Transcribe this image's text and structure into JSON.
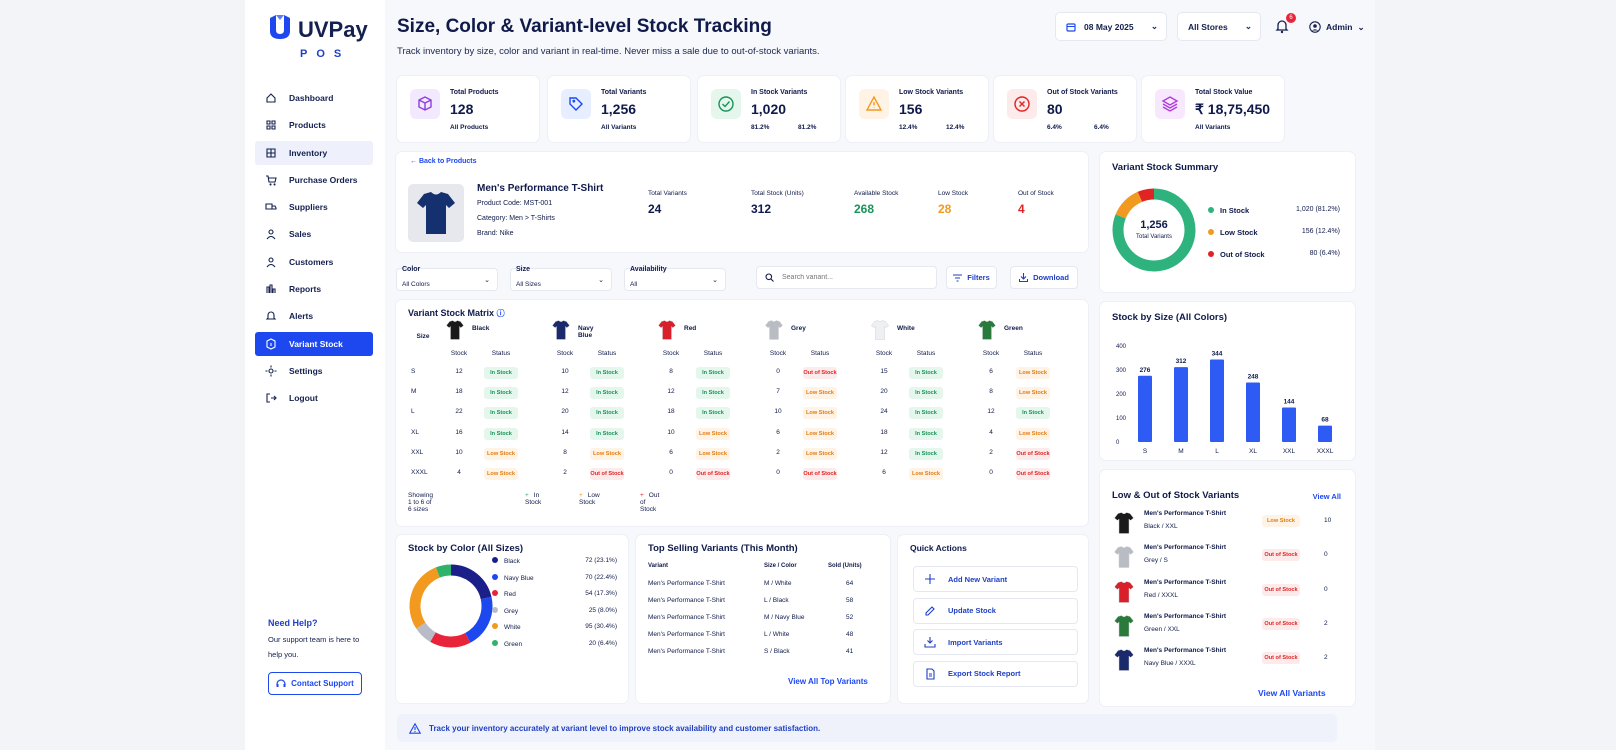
{
  "brand": {
    "name": "UVPay",
    "sub": "POS"
  },
  "nav": [
    {
      "label": "Dashboard",
      "icon": "home-icon"
    },
    {
      "label": "Products",
      "icon": "grid-icon"
    },
    {
      "label": "Inventory",
      "icon": "inventory-icon"
    },
    {
      "label": "Purchase Orders",
      "icon": "cart-icon"
    },
    {
      "label": "Suppliers",
      "icon": "supplier-icon"
    },
    {
      "label": "Sales",
      "icon": "sales-icon"
    },
    {
      "label": "Customers",
      "icon": "customers-icon"
    },
    {
      "label": "Reports",
      "icon": "reports-icon"
    },
    {
      "label": "Alerts",
      "icon": "alerts-icon"
    },
    {
      "label": "Variant Stock",
      "icon": "variant-stock-icon"
    },
    {
      "label": "Settings",
      "icon": "settings-icon"
    },
    {
      "label": "Logout",
      "icon": "logout-icon"
    }
  ],
  "help": {
    "title": "Need Help?",
    "text": "Our support team is here to help you.",
    "button": "Contact Support"
  },
  "header": {
    "title": "Size, Color & Variant-level Stock Tracking",
    "subtitle": "Track inventory by size, color and variant in real-time. Never miss a sale due to out-of-stock variants.",
    "date": "08 May 2025",
    "store": "All Stores",
    "notifications": "6",
    "user": "Admin"
  },
  "stats": [
    {
      "label": "Total Products",
      "value": "128",
      "s1": "All Products",
      "s2": "",
      "color": "#8b3fd9",
      "bg": "#f3e9ff",
      "icon": "box-icon"
    },
    {
      "label": "Total Variants",
      "value": "1,256",
      "s1": "All Variants",
      "s2": "",
      "color": "#1d48f0",
      "bg": "#e7eeff",
      "icon": "tag-icon"
    },
    {
      "label": "In Stock Variants",
      "value": "1,020",
      "s1": "81.2%",
      "s2": "81.2%",
      "color": "#16945a",
      "bg": "#e5f6ec",
      "icon": "check-icon"
    },
    {
      "label": "Low Stock Variants",
      "value": "156",
      "s1": "12.4%",
      "s2": "12.4%",
      "color": "#f29a20",
      "bg": "#fff3e6",
      "icon": "warning-icon"
    },
    {
      "label": "Out of Stock Variants",
      "value": "80",
      "s1": "6.4%",
      "s2": "6.4%",
      "color": "#e02424",
      "bg": "#fdeaea",
      "icon": "x-circle-icon"
    },
    {
      "label": "Total Stock Value",
      "value": "₹ 18,75,450",
      "s1": "All Variants",
      "s2": "",
      "color": "#b23ad9",
      "bg": "#f7e8fd",
      "icon": "layers-icon"
    }
  ],
  "product": {
    "back": "Back to Products",
    "name": "Men's Performance T-Shirt",
    "code": "Product Code: MST-001",
    "category": "Category: Men  >  T-Shirts",
    "brand": "Brand: Nike",
    "metrics": [
      {
        "label": "Total Variants",
        "value": "24",
        "color": "#0f1a4a"
      },
      {
        "label": "Total Stock (Units)",
        "value": "312",
        "color": "#0f1a4a"
      },
      {
        "label": "Available Stock",
        "value": "268",
        "color": "#16945a"
      },
      {
        "label": "Low Stock",
        "value": "28",
        "color": "#f29a20"
      },
      {
        "label": "Out of Stock",
        "value": "4",
        "color": "#e02424"
      }
    ]
  },
  "filters": {
    "color": {
      "label": "Color",
      "value": "All Colors"
    },
    "size": {
      "label": "Size",
      "value": "All Sizes"
    },
    "availability": {
      "label": "Availability",
      "value": "All"
    },
    "search_placeholder": "Search variant...",
    "filters_btn": "Filters",
    "download_btn": "Download"
  },
  "matrix": {
    "title": "Variant Stock Matrix",
    "size_header": "Size",
    "stock_header": "Stock",
    "status_header": "Status",
    "colors": [
      {
        "name": "Black",
        "hex": "#1a1a1a"
      },
      {
        "name": "Navy Blue",
        "hex": "#1b2a6b"
      },
      {
        "name": "Red",
        "hex": "#d81f2a"
      },
      {
        "name": "Grey",
        "hex": "#b9bcc2"
      },
      {
        "name": "White",
        "hex": "#eef0f3"
      },
      {
        "name": "Green",
        "hex": "#2a7a3b"
      }
    ],
    "sizes": [
      "S",
      "M",
      "L",
      "XL",
      "XXL",
      "XXXL"
    ],
    "rows": [
      [
        [
          "12",
          "In Stock"
        ],
        [
          "10",
          "In Stock"
        ],
        [
          "8",
          "In Stock"
        ],
        [
          "0",
          "Out of Stock"
        ],
        [
          "15",
          "In Stock"
        ],
        [
          "6",
          "Low Stock"
        ]
      ],
      [
        [
          "18",
          "In Stock"
        ],
        [
          "12",
          "In Stock"
        ],
        [
          "12",
          "In Stock"
        ],
        [
          "7",
          "Low Stock"
        ],
        [
          "20",
          "In Stock"
        ],
        [
          "8",
          "Low Stock"
        ]
      ],
      [
        [
          "22",
          "In Stock"
        ],
        [
          "20",
          "In Stock"
        ],
        [
          "18",
          "In Stock"
        ],
        [
          "10",
          "Low Stock"
        ],
        [
          "24",
          "In Stock"
        ],
        [
          "12",
          "In Stock"
        ]
      ],
      [
        [
          "16",
          "In Stock"
        ],
        [
          "14",
          "In Stock"
        ],
        [
          "10",
          "Low Stock"
        ],
        [
          "6",
          "Low Stock"
        ],
        [
          "18",
          "In Stock"
        ],
        [
          "4",
          "Low Stock"
        ]
      ],
      [
        [
          "10",
          "Low Stock"
        ],
        [
          "8",
          "Low Stock"
        ],
        [
          "6",
          "Low Stock"
        ],
        [
          "2",
          "Low Stock"
        ],
        [
          "12",
          "In Stock"
        ],
        [
          "2",
          "Out of Stock"
        ]
      ],
      [
        [
          "4",
          "Low Stock"
        ],
        [
          "2",
          "Out of Stock"
        ],
        [
          "0",
          "Out of Stock"
        ],
        [
          "0",
          "Out of Stock"
        ],
        [
          "6",
          "Low Stock"
        ],
        [
          "0",
          "Out of Stock"
        ]
      ]
    ],
    "showing": "Showing 1 to 6 of 6 sizes",
    "legend": [
      "In Stock",
      "Low Stock",
      "Out of Stock"
    ]
  },
  "color_summary": {
    "title": "Stock by Color (All Sizes)",
    "items": [
      {
        "name": "Black",
        "value": "72 (23.1%)",
        "hex": "#1b1f8a"
      },
      {
        "name": "Navy Blue",
        "value": "70 (22.4%)",
        "hex": "#1d48f0"
      },
      {
        "name": "Red",
        "value": "54 (17.3%)",
        "hex": "#e8243a"
      },
      {
        "name": "Grey",
        "value": "25 (8.0%)",
        "hex": "#b9bcc8"
      },
      {
        "name": "White",
        "value": "95 (30.4%)",
        "hex": "#f29a20"
      },
      {
        "name": "Green",
        "value": "20 (6.4%)",
        "hex": "#2fb36b"
      }
    ]
  },
  "top_selling": {
    "title": "Top Selling Variants (This Month)",
    "headers": [
      "Variant",
      "Size / Color",
      "Sold (Units)"
    ],
    "rows": [
      [
        "Men's Performance T-Shirt",
        "M / White",
        "64"
      ],
      [
        "Men's Performance T-Shirt",
        "L / Black",
        "58"
      ],
      [
        "Men's Performance T-Shirt",
        "M / Navy Blue",
        "52"
      ],
      [
        "Men's Performance T-Shirt",
        "L / White",
        "48"
      ],
      [
        "Men's Performance T-Shirt",
        "S / Black",
        "41"
      ]
    ],
    "link": "View All Top Variants"
  },
  "quick_actions": {
    "title": "Quick Actions",
    "items": [
      {
        "label": "Add New Variant",
        "icon": "plus-icon"
      },
      {
        "label": "Update Stock",
        "icon": "edit-icon"
      },
      {
        "label": "Import Variants",
        "icon": "import-icon"
      },
      {
        "label": "Export Stock Report",
        "icon": "export-icon"
      }
    ]
  },
  "variant_summary": {
    "title": "Variant Stock Summary",
    "center_value": "1,256",
    "center_label": "Total Variants",
    "items": [
      {
        "name": "In Stock",
        "value": "1,020 (81.2%)",
        "hex": "#2fb37e",
        "frac": 0.812
      },
      {
        "name": "Low Stock",
        "value": "156 (12.4%)",
        "hex": "#f29a20",
        "frac": 0.124
      },
      {
        "name": "Out of Stock",
        "value": "80 (6.4%)",
        "hex": "#e02424",
        "frac": 0.064
      }
    ]
  },
  "chart_data": {
    "type": "bar",
    "title": "Stock by Size (All Colors)",
    "categories": [
      "S",
      "M",
      "L",
      "XL",
      "XXL",
      "XXXL"
    ],
    "values": [
      276,
      312,
      344,
      248,
      144,
      68
    ],
    "ylim": [
      0,
      400
    ],
    "yticks": [
      0,
      100,
      200,
      300,
      400
    ],
    "color": "#2f5bf5"
  },
  "low_out": {
    "title": "Low & Out of Stock Variants",
    "view_all": "View All",
    "items": [
      {
        "name": "Men's Performance T-Shirt",
        "variant": "Black / XXL",
        "status": "Low Stock",
        "qty": "10",
        "hex": "#1a1a1a"
      },
      {
        "name": "Men's Performance T-Shirt",
        "variant": "Grey / S",
        "status": "Out of Stock",
        "qty": "0",
        "hex": "#b9bcc2"
      },
      {
        "name": "Men's Performance T-Shirt",
        "variant": "Red / XXXL",
        "status": "Out of Stock",
        "qty": "0",
        "hex": "#d81f2a"
      },
      {
        "name": "Men's Performance T-Shirt",
        "variant": "Green / XXL",
        "status": "Out of Stock",
        "qty": "2",
        "hex": "#2a7a3b"
      },
      {
        "name": "Men's Performance T-Shirt",
        "variant": "Navy Blue / XXXL",
        "status": "Out of Stock",
        "qty": "2",
        "hex": "#1b2a6b"
      }
    ],
    "link": "View All Variants"
  },
  "footer": "Track your inventory accurately at variant level to improve stock availability and customer satisfaction."
}
